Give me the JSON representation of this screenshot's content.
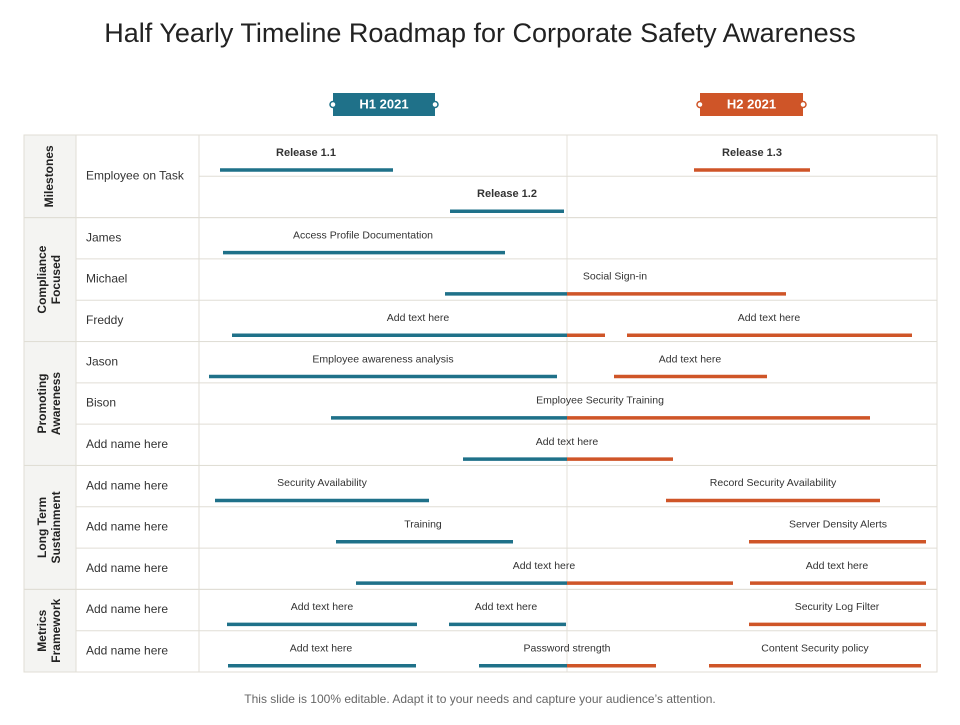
{
  "title": "Half Yearly Timeline Roadmap for Corporate Safety Awareness",
  "periods": [
    {
      "label": "H1 2021",
      "color": "#1f7189"
    },
    {
      "label": "H2 2021",
      "color": "#cf5528"
    }
  ],
  "groups": [
    {
      "label": [
        "Milestones"
      ],
      "rows": [
        {
          "name": "Employee on Task",
          "items": [
            {
              "label": "Release 1.1"
            },
            {
              "label": "Release 1.3"
            }
          ]
        },
        {
          "name": null,
          "items": [
            {
              "label": "Release 1.2"
            }
          ]
        }
      ]
    },
    {
      "label": [
        "Compliance",
        "Focused"
      ],
      "rows": [
        {
          "name": "James",
          "items": [
            {
              "label": "Access Profile Documentation"
            }
          ]
        },
        {
          "name": "Michael",
          "items": [
            {
              "label": "Social Sign-in"
            }
          ]
        },
        {
          "name": "Freddy",
          "items": [
            {
              "label": "Add text here"
            },
            {
              "label": "Add text here"
            }
          ]
        }
      ]
    },
    {
      "label": [
        "Promoting",
        "Awareness"
      ],
      "rows": [
        {
          "name": "Jason",
          "items": [
            {
              "label": "Employee awareness analysis"
            },
            {
              "label": "Add text here"
            }
          ]
        },
        {
          "name": "Bison",
          "items": [
            {
              "label": "Employee Security Training"
            }
          ]
        },
        {
          "name": "Add name here",
          "items": [
            {
              "label": "Add text here"
            }
          ]
        }
      ]
    },
    {
      "label": [
        "Long Term",
        "Sustainment"
      ],
      "rows": [
        {
          "name": "Add name here",
          "items": [
            {
              "label": "Security Availability"
            },
            {
              "label": "Record Security Availability"
            }
          ]
        },
        {
          "name": "Add name here",
          "items": [
            {
              "label": "Training"
            },
            {
              "label": "Server Density Alerts"
            }
          ]
        },
        {
          "name": "Add name here",
          "items": [
            {
              "label": "Add text here"
            },
            {
              "label": "Add text here"
            }
          ]
        }
      ]
    },
    {
      "label": [
        "Metrics",
        "Framework"
      ],
      "rows": [
        {
          "name": "Add name here",
          "items": [
            {
              "label": "Add text here"
            },
            {
              "label": "Add text here"
            },
            {
              "label": "Security Log Filter"
            }
          ]
        },
        {
          "name": "Add name here",
          "items": [
            {
              "label": "Add text here"
            },
            {
              "label": "Password strength"
            },
            {
              "label": "Content Security policy"
            }
          ]
        }
      ]
    }
  ],
  "footer": "This slide is 100% editable. Adapt it to your needs and capture your audience’s attention."
}
